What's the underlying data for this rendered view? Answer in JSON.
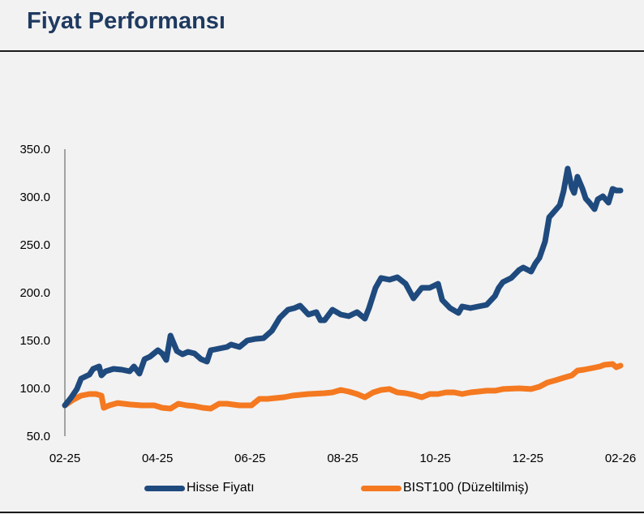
{
  "header": {
    "title": "Fiyat Performansı"
  },
  "chart_data": {
    "type": "line",
    "title": "Fiyat Performansı",
    "xlabel": "",
    "ylabel": "",
    "ylim": [
      50,
      350
    ],
    "yticks": [
      "50.0",
      "100.0",
      "150.0",
      "200.0",
      "250.0",
      "300.0",
      "350.0"
    ],
    "xticks": [
      "02-25",
      "04-25",
      "06-25",
      "08-25",
      "10-25",
      "12-25",
      "02-26"
    ],
    "x_unit": "months since 02-25",
    "legend_position": "bottom",
    "series": [
      {
        "name": "Hisse Fiyatı",
        "color": "#1f4a7e",
        "x": [
          0,
          0.14,
          0.26,
          0.35,
          0.53,
          0.61,
          0.74,
          0.79,
          0.88,
          1.05,
          1.23,
          1.4,
          1.49,
          1.61,
          1.72,
          1.84,
          2.01,
          2.1,
          2.19,
          2.28,
          2.42,
          2.54,
          2.66,
          2.8,
          2.94,
          3.07,
          3.15,
          3.24,
          3.5,
          3.59,
          3.77,
          3.94,
          4.12,
          4.29,
          4.47,
          4.64,
          4.82,
          4.96,
          5.08,
          5.26,
          5.43,
          5.52,
          5.61,
          5.78,
          5.96,
          6.13,
          6.31,
          6.48,
          6.57,
          6.71,
          6.83,
          7.01,
          7.18,
          7.36,
          7.53,
          7.71,
          7.88,
          8.06,
          8.15,
          8.32,
          8.5,
          8.58,
          8.76,
          8.93,
          9.11,
          9.29,
          9.37,
          9.46,
          9.64,
          9.81,
          9.9,
          10.07,
          10.16,
          10.25,
          10.37,
          10.46,
          10.51,
          10.69,
          10.77,
          10.86,
          10.95,
          11.0,
          11.07,
          11.18,
          11.25,
          11.33,
          11.44,
          11.51,
          11.62,
          11.74,
          11.83,
          11.91,
          12
        ],
        "values": [
          82.2,
          90.7,
          99.2,
          110.2,
          114.4,
          120.3,
          122.9,
          113.6,
          117.8,
          120.3,
          119.5,
          117.8,
          122.9,
          115.3,
          130.5,
          133.1,
          139.8,
          136.4,
          129.7,
          155.1,
          139,
          135.6,
          138.1,
          136.4,
          130.5,
          128,
          139.8,
          140.7,
          143.2,
          145.8,
          143.2,
          150,
          151.7,
          152.5,
          160.2,
          173.7,
          182.2,
          183.9,
          186.4,
          177.1,
          179.7,
          171.2,
          171.2,
          182.2,
          177.1,
          175.4,
          179.7,
          172.9,
          183.9,
          205.1,
          215.3,
          213.6,
          216.1,
          209.3,
          194.1,
          205.1,
          205.1,
          209.3,
          192.4,
          183.9,
          178.8,
          185.6,
          183.9,
          185.6,
          187.3,
          196.6,
          205.1,
          211,
          215.3,
          223.7,
          226.3,
          222,
          230.5,
          236.4,
          253.4,
          278.8,
          281.4,
          291.5,
          305.9,
          329.7,
          309.3,
          304.2,
          321.2,
          308.5,
          298.3,
          294.1,
          287.3,
          297.5,
          300.8,
          294.1,
          308.5,
          306.8,
          306.8
        ]
      },
      {
        "name": "BIST100 (Düzeltilmiş)",
        "color": "#f47920",
        "x": [
          0,
          0.18,
          0.35,
          0.53,
          0.67,
          0.79,
          0.84,
          0.96,
          1.14,
          1.4,
          1.66,
          1.93,
          2.1,
          2.28,
          2.45,
          2.63,
          2.8,
          2.98,
          3.15,
          3.33,
          3.5,
          3.77,
          4.03,
          4.2,
          4.38,
          4.55,
          4.73,
          4.91,
          5.08,
          5.26,
          5.61,
          5.78,
          5.96,
          6.13,
          6.31,
          6.48,
          6.66,
          6.83,
          7.01,
          7.18,
          7.36,
          7.53,
          7.71,
          7.88,
          8.06,
          8.23,
          8.41,
          8.58,
          8.76,
          8.93,
          9.11,
          9.29,
          9.46,
          9.81,
          10.07,
          10.25,
          10.42,
          10.6,
          10.77,
          10.95,
          11.07,
          11.21,
          11.39,
          11.56,
          11.65,
          11.83,
          11.91,
          12
        ],
        "values": [
          82.2,
          88.1,
          92.4,
          94.1,
          94.1,
          92.4,
          79.7,
          82.2,
          84.7,
          83.1,
          82.2,
          82.2,
          79.7,
          78.8,
          83.9,
          82.2,
          81.4,
          79.7,
          78.8,
          83.9,
          83.9,
          82.2,
          82.2,
          89,
          89,
          89.8,
          90.7,
          92.4,
          93.2,
          94.1,
          94.9,
          95.8,
          98.3,
          96.6,
          94.1,
          90.7,
          95.8,
          98.3,
          99.2,
          95.8,
          94.9,
          93.2,
          90.7,
          94.1,
          94.1,
          95.8,
          95.8,
          94.1,
          95.8,
          96.6,
          97.5,
          97.5,
          99.2,
          100,
          99.2,
          101.7,
          106,
          108.5,
          111,
          113.6,
          118.6,
          119.5,
          121.2,
          122.9,
          124.6,
          125.4,
          122,
          123.7
        ]
      }
    ]
  }
}
